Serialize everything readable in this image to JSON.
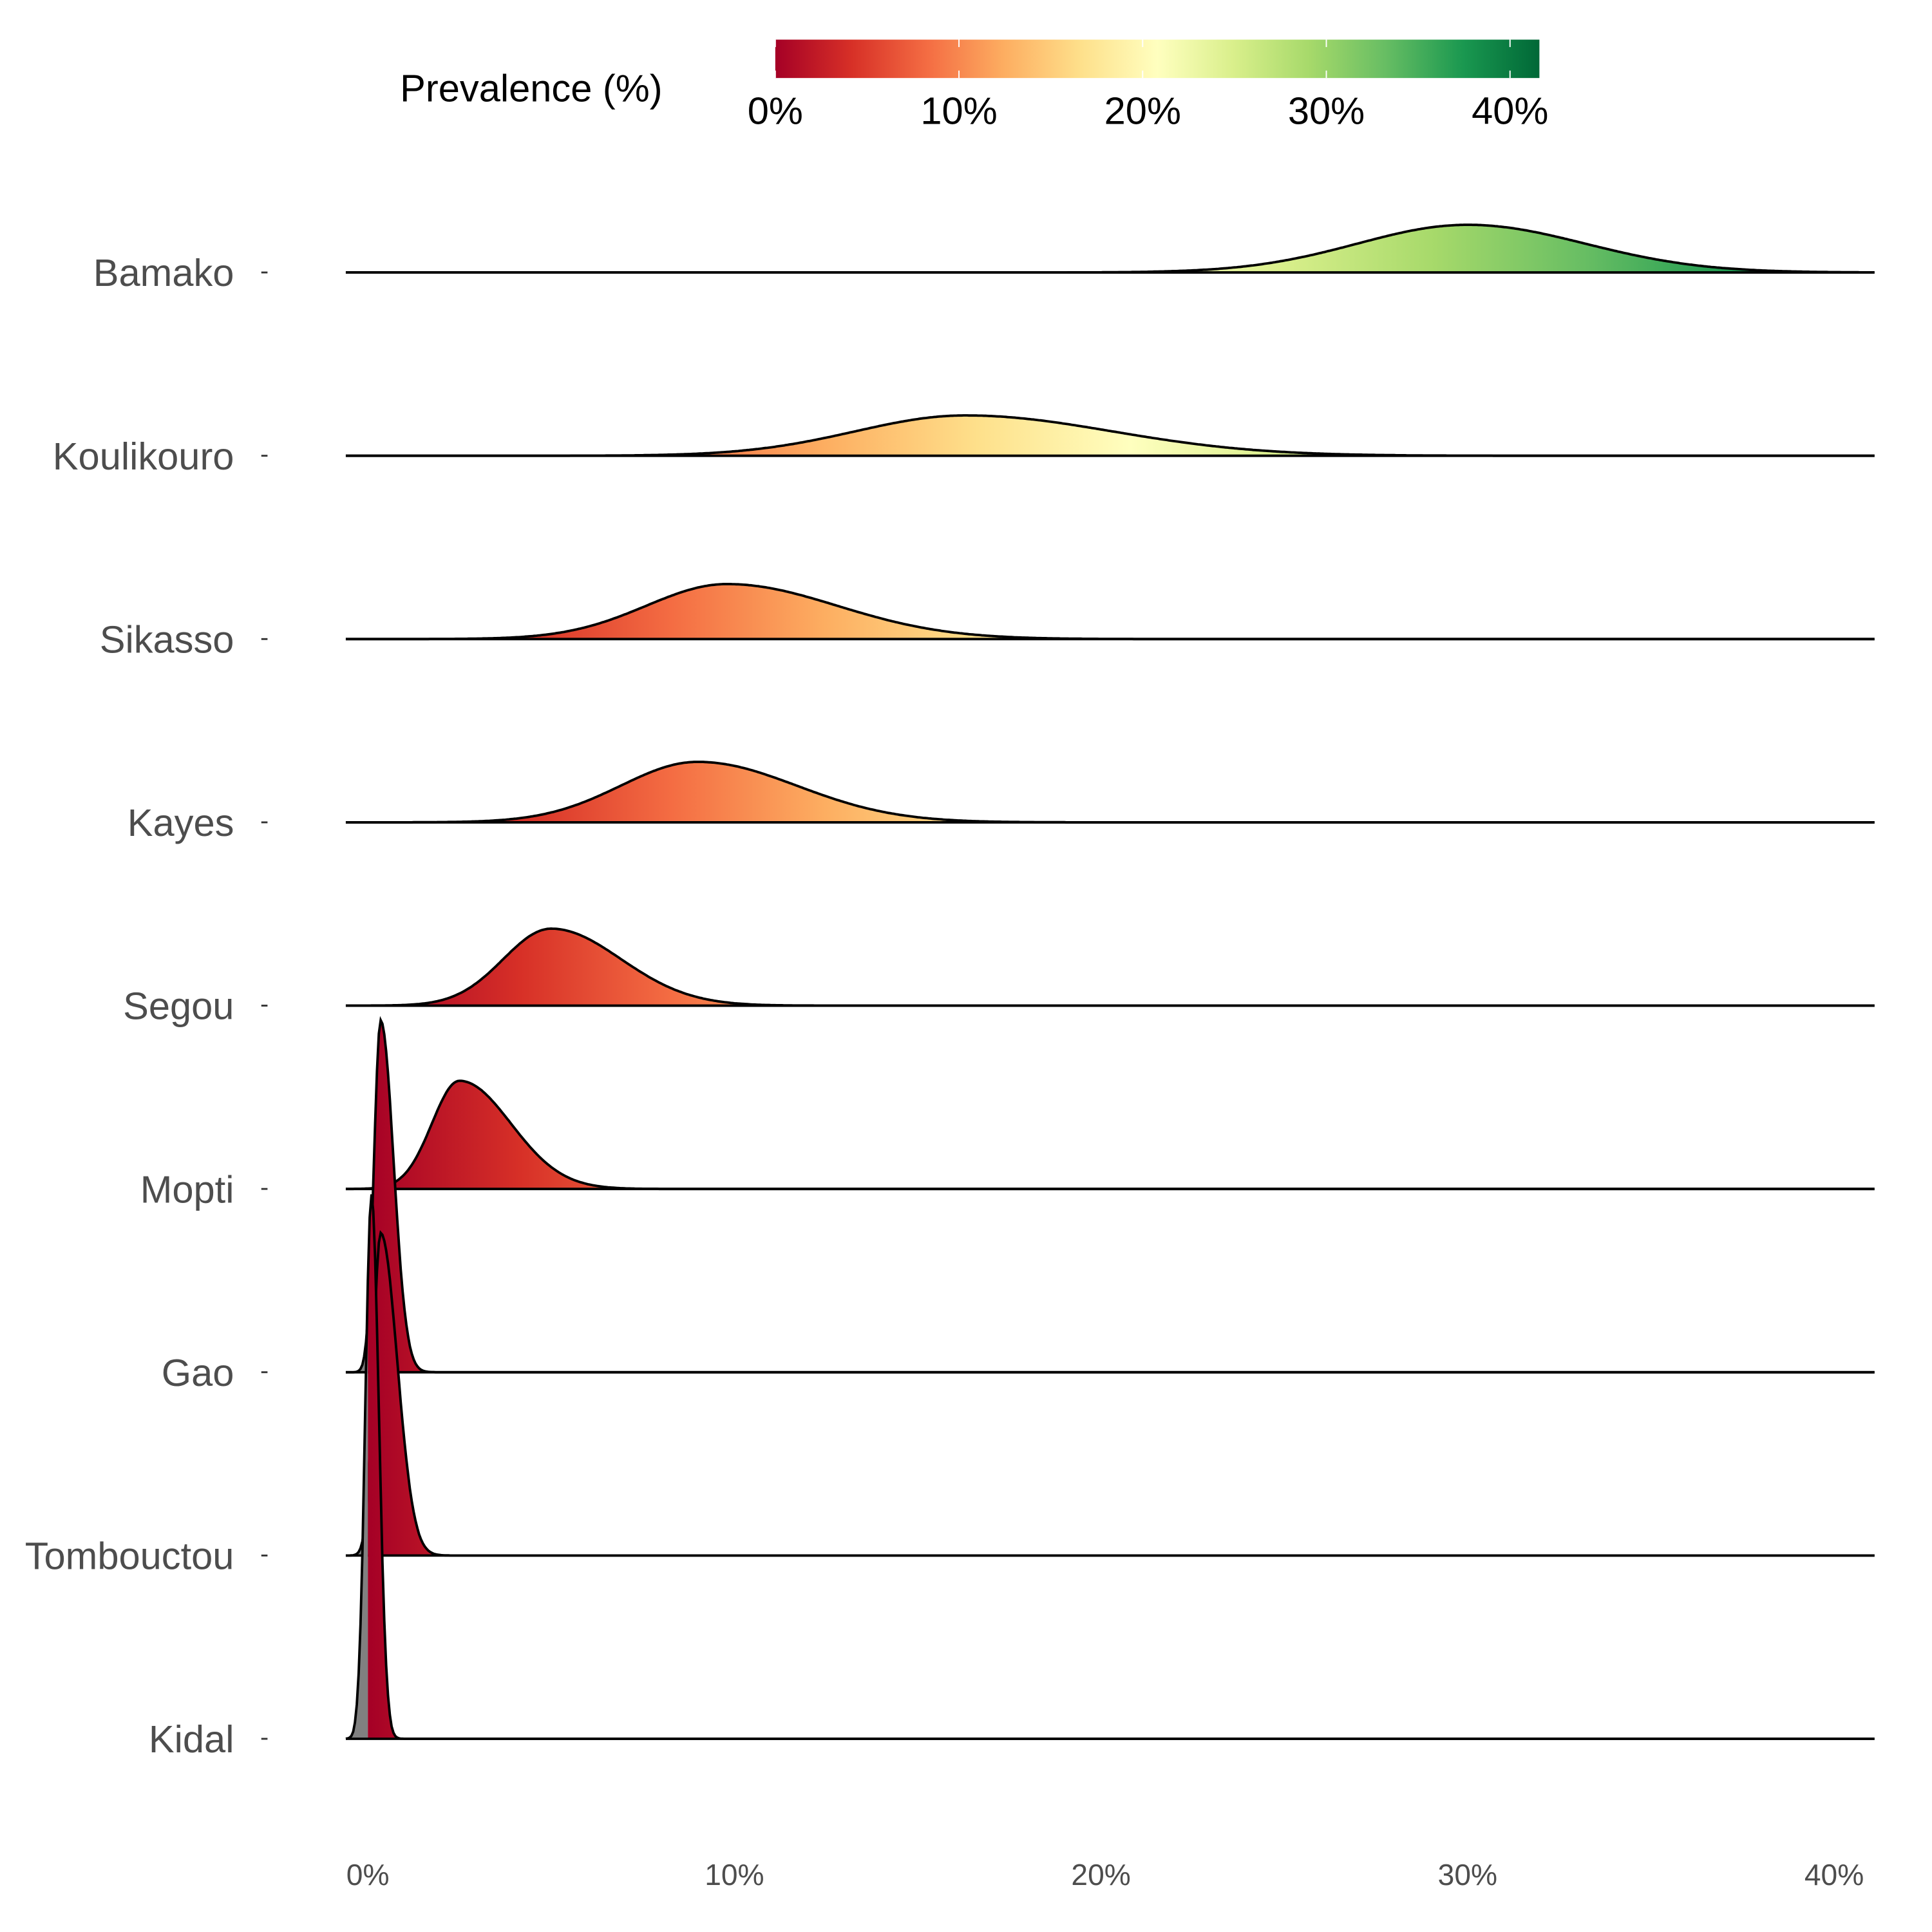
{
  "chart_data": {
    "type": "ridgeline",
    "title": "",
    "xlabel": "",
    "ylabel": "",
    "xlim": [
      -0.6,
      41.1
    ],
    "x_ticks": [
      0,
      10,
      20,
      30,
      40
    ],
    "x_tick_labels": [
      "0%",
      "10%",
      "20%",
      "30%",
      "40%"
    ],
    "legend": {
      "title": "Prevalence (%)",
      "placement": "top",
      "range": [
        0,
        41.6
      ],
      "tick_values": [
        0,
        10,
        20,
        30,
        40
      ],
      "tick_labels": [
        "0%",
        "10%",
        "20%",
        "30%",
        "40%"
      ],
      "palette": [
        "#a50026",
        "#d73027",
        "#f46d43",
        "#fdae61",
        "#fee08b",
        "#ffffbf",
        "#d9ef8b",
        "#a6d96a",
        "#66bd63",
        "#1a9850",
        "#006837"
      ],
      "below_zero_color": "#808080"
    },
    "grid": false,
    "series": [
      {
        "name": "Bamako",
        "mode": 30.0,
        "sd_left": 3.0,
        "sd_right": 3.2,
        "relative_height": 0.26
      },
      {
        "name": "Koulikouro",
        "mode": 16.3,
        "sd_left": 3.0,
        "sd_right": 4.0,
        "relative_height": 0.22
      },
      {
        "name": "Sikasso",
        "mode": 9.8,
        "sd_left": 2.2,
        "sd_right": 3.0,
        "relative_height": 0.3
      },
      {
        "name": "Kayes",
        "mode": 9.0,
        "sd_left": 2.1,
        "sd_right": 2.7,
        "relative_height": 0.33
      },
      {
        "name": "Segou",
        "mode": 5.0,
        "sd_left": 1.3,
        "sd_right": 1.9,
        "relative_height": 0.42
      },
      {
        "name": "Mopti",
        "mode": 2.5,
        "sd_left": 0.75,
        "sd_right": 1.4,
        "relative_height": 0.59
      },
      {
        "name": "Gao",
        "mode": 0.35,
        "sd_left": 0.18,
        "sd_right": 0.35,
        "relative_height": 1.92
      },
      {
        "name": "Tombouctou",
        "mode": 0.35,
        "sd_left": 0.2,
        "sd_right": 0.45,
        "relative_height": 1.76
      },
      {
        "name": "Kidal",
        "mode": 0.1,
        "sd_left": 0.17,
        "sd_right": 0.2,
        "relative_height": 2.97
      }
    ]
  }
}
